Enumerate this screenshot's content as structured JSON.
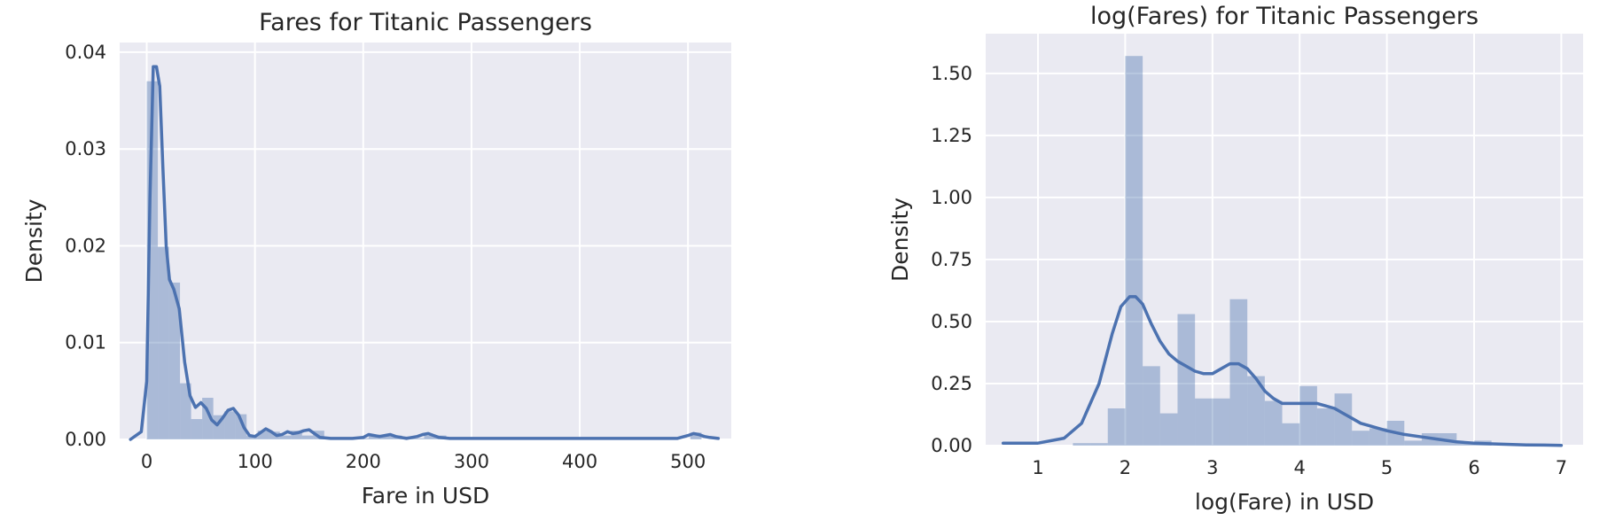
{
  "chart_data": [
    {
      "type": "bar",
      "title": "Fares for Titanic Passengers",
      "xlabel": "Fare in USD",
      "ylabel": "Density",
      "xlim": [
        -25,
        540
      ],
      "ylim": [
        0,
        0.041
      ],
      "xticks": [
        0,
        100,
        200,
        300,
        400,
        500
      ],
      "xtick_labels": [
        "0",
        "100",
        "200",
        "300",
        "400",
        "500"
      ],
      "yticks": [
        0,
        0.01,
        0.02,
        0.03,
        0.04
      ],
      "ytick_labels": [
        "0.00",
        "0.01",
        "0.02",
        "0.03",
        "0.04"
      ],
      "grid": true,
      "series": [
        {
          "kind": "histogram",
          "bin_width": 10.25,
          "bin_edges": [
            0,
            10.25,
            20.5,
            30.75,
            41,
            51.25,
            61.5,
            71.75,
            82,
            92.25,
            102.5,
            112.75,
            123,
            133.25,
            143.5,
            153.75,
            164,
            174.25,
            184.5,
            194.75,
            205,
            215.25,
            225.5,
            235.75,
            246,
            256.25,
            266.5,
            276.75,
            287,
            297.25,
            307.5,
            317.75,
            328,
            338.25,
            348.5,
            358.75,
            369,
            379.25,
            389.5,
            399.75,
            410,
            420.25,
            430.5,
            440.75,
            451,
            461.25,
            471.5,
            481.75,
            492,
            502.25,
            512.5
          ],
          "values": [
            0.037,
            0.0199,
            0.0162,
            0.0058,
            0.0021,
            0.0043,
            0.0025,
            0.0029,
            0.0026,
            0.0004,
            0.0009,
            0.0008,
            0.0004,
            0.0009,
            0.0004,
            0.0009,
            0.0001,
            0.0001,
            0,
            0.0001,
            0.0005,
            0.0004,
            0.0004,
            0.0003,
            0.0001,
            0.0004,
            0.0004,
            0,
            0,
            0,
            0,
            0,
            0,
            0,
            0,
            0,
            0,
            0,
            0,
            0,
            0,
            0,
            0,
            0,
            0,
            0,
            0,
            0,
            0,
            0.0007
          ]
        },
        {
          "kind": "kde",
          "x": [
            -15,
            -5,
            0,
            3,
            6,
            9,
            12,
            15,
            18,
            21,
            25,
            30,
            35,
            40,
            45,
            50,
            55,
            60,
            65,
            70,
            75,
            80,
            85,
            90,
            95,
            100,
            105,
            110,
            115,
            120,
            125,
            130,
            135,
            140,
            145,
            150,
            155,
            160,
            170,
            180,
            190,
            200,
            205,
            210,
            215,
            220,
            225,
            230,
            240,
            250,
            255,
            260,
            265,
            270,
            280,
            300,
            350,
            400,
            450,
            490,
            500,
            505,
            510,
            515,
            520,
            528
          ],
          "y": [
            0,
            0.0008,
            0.006,
            0.025,
            0.0385,
            0.0385,
            0.0365,
            0.028,
            0.02,
            0.0165,
            0.0155,
            0.0135,
            0.008,
            0.0045,
            0.0033,
            0.0038,
            0.0032,
            0.002,
            0.0015,
            0.0022,
            0.003,
            0.0032,
            0.0025,
            0.0012,
            0.0004,
            0.0003,
            0.0007,
            0.0011,
            0.0008,
            0.0004,
            0.0005,
            0.0008,
            0.0006,
            0.0007,
            0.0009,
            0.001,
            0.0006,
            0.0002,
            0.0001,
            0.0001,
            0.0001,
            0.0002,
            0.0005,
            0.0004,
            0.0003,
            0.0004,
            0.0005,
            0.0003,
            0.0001,
            0.0003,
            0.0005,
            0.0006,
            0.0004,
            0.0002,
            0.0001,
            0.0001,
            0.0001,
            0.0001,
            0.0001,
            0.0001,
            0.0004,
            0.0006,
            0.0005,
            0.0003,
            0.0002,
            0.0001
          ]
        }
      ]
    },
    {
      "type": "bar",
      "title": "log(Fares) for Titanic Passengers",
      "xlabel": "log(Fare) in USD",
      "ylabel": "Density",
      "xlim": [
        0.4,
        7.25
      ],
      "ylim": [
        0,
        1.66
      ],
      "xticks": [
        1,
        2,
        3,
        4,
        5,
        6,
        7
      ],
      "xtick_labels": [
        "1",
        "2",
        "3",
        "4",
        "5",
        "6",
        "7"
      ],
      "yticks": [
        0,
        0.25,
        0.5,
        0.75,
        1.0,
        1.25,
        1.5
      ],
      "ytick_labels": [
        "0.00",
        "0.25",
        "0.50",
        "0.75",
        "1.00",
        "1.25",
        "1.50"
      ],
      "grid": true,
      "series": [
        {
          "kind": "histogram",
          "bin_width": 0.2,
          "bin_edges": [
            1.4,
            1.6,
            1.8,
            2.0,
            2.2,
            2.4,
            2.6,
            2.8,
            3.0,
            3.2,
            3.4,
            3.6,
            3.8,
            4.0,
            4.2,
            4.4,
            4.6,
            4.8,
            5.0,
            5.2,
            5.4,
            5.6,
            5.8,
            6.0,
            6.2
          ],
          "values": [
            0.01,
            0.01,
            0.15,
            1.57,
            0.32,
            0.13,
            0.53,
            0.19,
            0.19,
            0.59,
            0.28,
            0.18,
            0.09,
            0.24,
            0.15,
            0.21,
            0.06,
            0.07,
            0.1,
            0.02,
            0.05,
            0.05,
            0.01,
            0.02
          ]
        },
        {
          "kind": "kde",
          "x": [
            0.6,
            1.0,
            1.3,
            1.5,
            1.7,
            1.85,
            1.95,
            2.05,
            2.12,
            2.2,
            2.3,
            2.4,
            2.5,
            2.6,
            2.7,
            2.8,
            2.9,
            3.0,
            3.1,
            3.2,
            3.3,
            3.4,
            3.5,
            3.6,
            3.7,
            3.8,
            3.9,
            4.0,
            4.1,
            4.2,
            4.3,
            4.4,
            4.5,
            4.6,
            4.7,
            4.8,
            4.9,
            5.0,
            5.2,
            5.4,
            5.6,
            5.8,
            6.0,
            6.2,
            6.4,
            6.6,
            6.8,
            7.0
          ],
          "y": [
            0.01,
            0.01,
            0.03,
            0.09,
            0.25,
            0.45,
            0.56,
            0.6,
            0.6,
            0.57,
            0.49,
            0.42,
            0.37,
            0.34,
            0.32,
            0.3,
            0.29,
            0.29,
            0.31,
            0.33,
            0.33,
            0.31,
            0.27,
            0.22,
            0.19,
            0.17,
            0.17,
            0.17,
            0.17,
            0.17,
            0.16,
            0.15,
            0.13,
            0.11,
            0.09,
            0.08,
            0.07,
            0.06,
            0.045,
            0.035,
            0.025,
            0.015,
            0.01,
            0.007,
            0.005,
            0.003,
            0.002,
            0.001
          ]
        }
      ]
    }
  ]
}
